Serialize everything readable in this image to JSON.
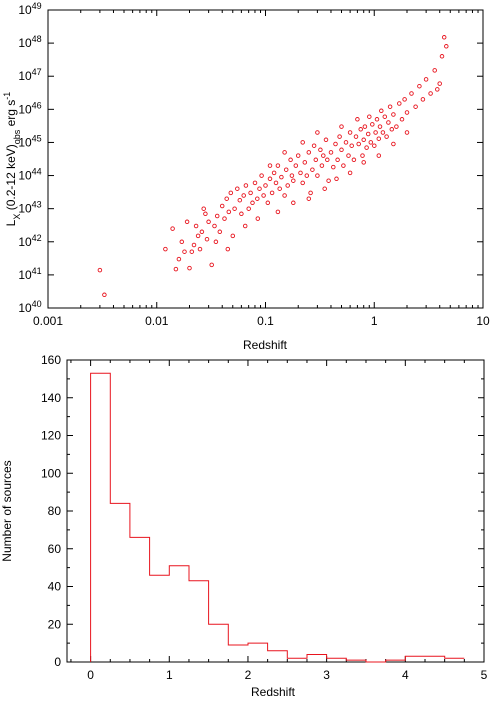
{
  "chart_data": [
    {
      "type": "scatter",
      "xlabel": "Redshift",
      "ylabel": "L_X (0.2-12 keV)_obs erg s^-1",
      "ylabel_parts": {
        "base": "L",
        "sub1": "X",
        "mid": " (0.2-12 keV)",
        "sub2": "obs",
        "unit": " erg s",
        "sup": "-1"
      },
      "xscale": "log",
      "yscale": "log",
      "xlim": [
        0.001,
        10
      ],
      "ylim": [
        1e+40,
        1e+49
      ],
      "x_ticks": [
        {
          "value": 0.001,
          "label": "0.001"
        },
        {
          "value": 0.01,
          "label": "0.01"
        },
        {
          "value": 0.1,
          "label": "0.1"
        },
        {
          "value": 1,
          "label": "1"
        },
        {
          "value": 10,
          "label": "10"
        }
      ],
      "y_ticks": [
        {
          "value": 1e+40,
          "base": "10",
          "exp": "40"
        },
        {
          "value": 1e+41,
          "base": "10",
          "exp": "41"
        },
        {
          "value": 1e+42,
          "base": "10",
          "exp": "42"
        },
        {
          "value": 1e+43,
          "base": "10",
          "exp": "43"
        },
        {
          "value": 1e+44,
          "base": "10",
          "exp": "44"
        },
        {
          "value": 1e+45,
          "base": "10",
          "exp": "45"
        },
        {
          "value": 1e+46,
          "base": "10",
          "exp": "46"
        },
        {
          "value": 1e+47,
          "base": "10",
          "exp": "47"
        },
        {
          "value": 1e+48,
          "base": "10",
          "exp": "48"
        },
        {
          "value": 1e+49,
          "base": "10",
          "exp": "49"
        }
      ],
      "marker_color": "#e8141e",
      "points": [
        [
          0.003,
          1.4e+41
        ],
        [
          0.0033,
          2.5e+40
        ],
        [
          0.012,
          6e+41
        ],
        [
          0.014,
          2.5e+42
        ],
        [
          0.015,
          1.5e+41
        ],
        [
          0.016,
          3e+41
        ],
        [
          0.017,
          1e+42
        ],
        [
          0.018,
          5e+41
        ],
        [
          0.019,
          4e+42
        ],
        [
          0.02,
          1.6e+41
        ],
        [
          0.021,
          5e+41
        ],
        [
          0.022,
          8e+41
        ],
        [
          0.023,
          3e+42
        ],
        [
          0.024,
          1.5e+42
        ],
        [
          0.025,
          6e+41
        ],
        [
          0.026,
          2e+42
        ],
        [
          0.027,
          1e+43
        ],
        [
          0.028,
          7e+42
        ],
        [
          0.029,
          1.2e+42
        ],
        [
          0.03,
          4e+42
        ],
        [
          0.032,
          2e+41
        ],
        [
          0.034,
          3e+42
        ],
        [
          0.036,
          6e+42
        ],
        [
          0.038,
          2e+42
        ],
        [
          0.04,
          1.2e+43
        ],
        [
          0.042,
          5e+42
        ],
        [
          0.044,
          2e+43
        ],
        [
          0.046,
          8e+42
        ],
        [
          0.048,
          3e+43
        ],
        [
          0.05,
          1.5e+42
        ],
        [
          0.052,
          1e+43
        ],
        [
          0.055,
          4e+43
        ],
        [
          0.058,
          1.8e+43
        ],
        [
          0.06,
          7e+42
        ],
        [
          0.063,
          2.5e+43
        ],
        [
          0.066,
          5e+43
        ],
        [
          0.07,
          1e+43
        ],
        [
          0.073,
          3e+43
        ],
        [
          0.076,
          1.5e+43
        ],
        [
          0.08,
          6e+43
        ],
        [
          0.084,
          2e+43
        ],
        [
          0.088,
          4e+43
        ],
        [
          0.092,
          1e+44
        ],
        [
          0.096,
          2.5e+43
        ],
        [
          0.1,
          5e+43
        ],
        [
          0.105,
          1.5e+43
        ],
        [
          0.11,
          8e+43
        ],
        [
          0.115,
          3e+43
        ],
        [
          0.12,
          1.2e+44
        ],
        [
          0.125,
          6e+43
        ],
        [
          0.13,
          2e+44
        ],
        [
          0.135,
          4e+43
        ],
        [
          0.14,
          9e+43
        ],
        [
          0.15,
          2.5e+43
        ],
        [
          0.155,
          1.5e+44
        ],
        [
          0.16,
          5e+43
        ],
        [
          0.17,
          3e+44
        ],
        [
          0.175,
          1e+44
        ],
        [
          0.18,
          7e+43
        ],
        [
          0.19,
          2e+44
        ],
        [
          0.2,
          4e+44
        ],
        [
          0.21,
          1.2e+44
        ],
        [
          0.22,
          6e+43
        ],
        [
          0.23,
          2.5e+44
        ],
        [
          0.24,
          1e+44
        ],
        [
          0.25,
          5e+44
        ],
        [
          0.26,
          3e+43
        ],
        [
          0.27,
          1.5e+44
        ],
        [
          0.28,
          8e+44
        ],
        [
          0.29,
          3e+44
        ],
        [
          0.3,
          1e+44
        ],
        [
          0.32,
          6e+44
        ],
        [
          0.33,
          2e+44
        ],
        [
          0.34,
          4e+44
        ],
        [
          0.36,
          1.2e+45
        ],
        [
          0.37,
          3e+44
        ],
        [
          0.38,
          7e+43
        ],
        [
          0.4,
          5e+44
        ],
        [
          0.42,
          1.8e+44
        ],
        [
          0.44,
          9e+44
        ],
        [
          0.46,
          3e+44
        ],
        [
          0.48,
          1.5e+45
        ],
        [
          0.5,
          6e+44
        ],
        [
          0.52,
          2e+44
        ],
        [
          0.55,
          1e+45
        ],
        [
          0.58,
          4e+44
        ],
        [
          0.6,
          2e+45
        ],
        [
          0.62,
          8e+44
        ],
        [
          0.65,
          3e+44
        ],
        [
          0.68,
          1.5e+45
        ],
        [
          0.7,
          5e+45
        ],
        [
          0.72,
          9e+44
        ],
        [
          0.75,
          2.5e+45
        ],
        [
          0.78,
          4e+44
        ],
        [
          0.8,
          1.2e+45
        ],
        [
          0.82,
          3e+45
        ],
        [
          0.85,
          7e+44
        ],
        [
          0.88,
          1.8e+45
        ],
        [
          0.9,
          6e+45
        ],
        [
          0.93,
          1e+45
        ],
        [
          0.96,
          3.5e+45
        ],
        [
          1.0,
          8e+44
        ],
        [
          1.03,
          2e+45
        ],
        [
          1.06,
          5e+45
        ],
        [
          1.1,
          1.3e+45
        ],
        [
          1.13,
          3e+45
        ],
        [
          1.16,
          9e+45
        ],
        [
          1.2,
          2e+45
        ],
        [
          1.25,
          6e+45
        ],
        [
          1.3,
          1.5e+45
        ],
        [
          1.35,
          4e+45
        ],
        [
          1.4,
          1.2e+46
        ],
        [
          1.45,
          2.5e+45
        ],
        [
          1.5,
          7e+45
        ],
        [
          1.6,
          3e+45
        ],
        [
          1.7,
          1.5e+46
        ],
        [
          1.8,
          5e+45
        ],
        [
          1.9,
          2e+46
        ],
        [
          2.0,
          8e+45
        ],
        [
          2.2,
          3e+46
        ],
        [
          2.4,
          1.2e+46
        ],
        [
          2.6,
          5e+46
        ],
        [
          2.8,
          2e+46
        ],
        [
          3.0,
          8e+46
        ],
        [
          3.3,
          3e+46
        ],
        [
          3.6,
          1.5e+47
        ],
        [
          3.8,
          4e+46
        ],
        [
          4.0,
          6e+46
        ],
        [
          4.2,
          4e+47
        ],
        [
          4.4,
          1.5e+48
        ],
        [
          4.6,
          8e+47
        ],
        [
          0.035,
          1e+42
        ],
        [
          0.045,
          6e+41
        ],
        [
          0.065,
          3e+42
        ],
        [
          0.085,
          5e+42
        ],
        [
          0.13,
          8e+42
        ],
        [
          0.18,
          1.5e+43
        ],
        [
          0.25,
          2e+43
        ],
        [
          0.35,
          4e+43
        ],
        [
          0.45,
          8e+43
        ],
        [
          0.6,
          1.2e+44
        ],
        [
          0.8,
          2.5e+44
        ],
        [
          1.1,
          4e+44
        ],
        [
          1.5,
          9e+44
        ],
        [
          2.0,
          2e+45
        ],
        [
          0.22,
          1e+45
        ],
        [
          0.15,
          5e+44
        ],
        [
          0.11,
          2e+44
        ],
        [
          0.3,
          2e+45
        ],
        [
          0.5,
          3e+45
        ]
      ]
    },
    {
      "type": "histogram",
      "xlabel": "Redshift",
      "ylabel": "Number of sources",
      "xlim": [
        -0.3,
        5
      ],
      "ylim": [
        0,
        160
      ],
      "x_ticks": [
        "0",
        "1",
        "2",
        "3",
        "4",
        "5"
      ],
      "x_tick_values": [
        0,
        1,
        2,
        3,
        4,
        5
      ],
      "y_ticks": [
        "0",
        "20",
        "40",
        "60",
        "80",
        "100",
        "120",
        "140",
        "160"
      ],
      "y_tick_values": [
        0,
        20,
        40,
        60,
        80,
        100,
        120,
        140,
        160
      ],
      "bin_edges": [
        0,
        0.25,
        0.5,
        0.75,
        1.0,
        1.25,
        1.5,
        1.75,
        2.0,
        2.25,
        2.5,
        2.75,
        3.0,
        3.25,
        3.5,
        3.75,
        4.0,
        4.25,
        4.5,
        4.75
      ],
      "counts": [
        153,
        84,
        66,
        46,
        51,
        43,
        20,
        9,
        10,
        6,
        2,
        4,
        2,
        1,
        0,
        1,
        3,
        3,
        2
      ],
      "line_color": "#e8141e"
    }
  ]
}
